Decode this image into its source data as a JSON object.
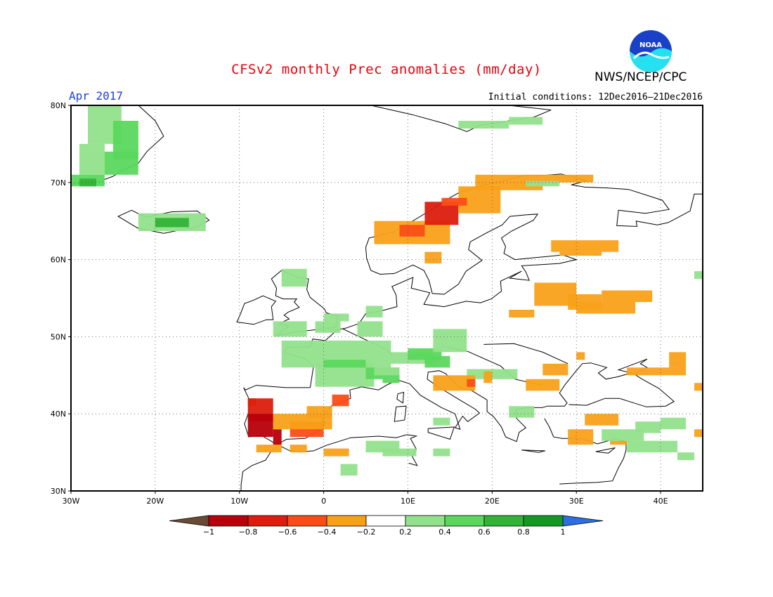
{
  "title": "CFSv2 monthly Prec anomalies (mm/day)",
  "agency": "NWS/NCEP/CPC",
  "logo_text": "NOAA",
  "period": "Apr 2017",
  "initial_conditions": "Initial conditions: 12Dec2016–21Dec2016",
  "map": {
    "projection": "equirectangular",
    "lon_range": [
      -30,
      45
    ],
    "lat_range": [
      30,
      80
    ],
    "lat_ticks": [
      "30N",
      "40N",
      "50N",
      "60N",
      "70N",
      "80N"
    ],
    "lon_ticks": [
      "30W",
      "20W",
      "10W",
      "0",
      "10E",
      "20E",
      "30E",
      "40E"
    ]
  },
  "colorbar": {
    "labels": [
      "−1",
      "−0.8",
      "−0.6",
      "−0.4",
      "−0.2",
      "0.2",
      "0.4",
      "0.6",
      "0.8",
      "1"
    ],
    "colors": [
      "#6b4a35",
      "#b8000b",
      "#dc1e0e",
      "#fa4d16",
      "#f9a019",
      "#ffffff",
      "#92e28b",
      "#5ad85d",
      "#30b437",
      "#129a25",
      "#2e6fe0"
    ]
  },
  "palette": {
    "title": "#e8000b",
    "period": "#1a3fe0",
    "logo_blue": "#1b40c8",
    "logo_cyan": "#26e0f0"
  }
}
